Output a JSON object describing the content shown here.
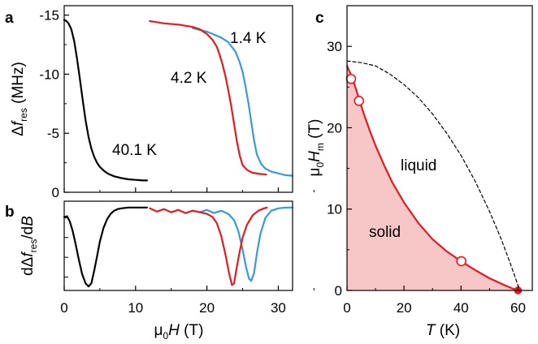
{
  "chart_data": [
    {
      "panel": "a",
      "type": "line",
      "ylabel": "Δf_res (MHz)",
      "xlim": [
        0,
        32
      ],
      "ylim": [
        0,
        -15.8
      ],
      "yticks": [
        "-15",
        "-10",
        "-5",
        "0"
      ],
      "annotations": [
        "1.4 K",
        "4.2 K",
        "40.1 K"
      ],
      "grid": false,
      "series": [
        {
          "name": "1.4 K",
          "color": "#3a9ad9",
          "x": [
            18.0,
            20.0,
            22.0,
            23.0,
            24.0,
            24.6,
            25.0,
            25.4,
            25.8,
            26.2,
            26.6,
            27.0,
            27.6,
            28.2,
            29.0,
            30.0,
            31.0,
            32.0
          ],
          "y": [
            -13.9,
            -13.6,
            -13.1,
            -12.7,
            -11.9,
            -11.0,
            -10.2,
            -9.0,
            -7.6,
            -6.0,
            -4.4,
            -3.2,
            -2.4,
            -2.0,
            -1.75,
            -1.6,
            -1.45,
            -1.4
          ]
        },
        {
          "name": "4.2 K",
          "color": "#e8191f",
          "x": [
            12.0,
            14.0,
            16.0,
            18.0,
            19.0,
            20.0,
            20.8,
            21.4,
            21.8,
            22.2,
            22.6,
            23.0,
            23.4,
            23.8,
            24.2,
            24.6,
            25.0,
            25.6,
            26.4,
            27.5,
            28.3
          ],
          "y": [
            -14.5,
            -14.3,
            -14.2,
            -14.0,
            -13.8,
            -13.4,
            -12.9,
            -12.3,
            -11.6,
            -10.8,
            -9.8,
            -8.6,
            -7.3,
            -5.8,
            -4.3,
            -3.1,
            -2.3,
            -1.9,
            -1.65,
            -1.55,
            -1.5
          ]
        },
        {
          "name": "40.1 K",
          "color": "#000000",
          "x": [
            0.0,
            0.3,
            0.6,
            1.0,
            1.4,
            1.8,
            2.2,
            2.6,
            3.0,
            3.4,
            3.8,
            4.2,
            4.6,
            5.0,
            5.6,
            6.2,
            7.0,
            8.0,
            9.0,
            10.0,
            11.0,
            11.6
          ],
          "y": [
            -14.6,
            -14.5,
            -14.3,
            -13.8,
            -12.8,
            -11.3,
            -9.6,
            -7.8,
            -6.1,
            -4.7,
            -3.7,
            -3.0,
            -2.5,
            -2.15,
            -1.8,
            -1.55,
            -1.35,
            -1.2,
            -1.1,
            -1.05,
            -1.0,
            -1.0
          ]
        }
      ]
    },
    {
      "panel": "b",
      "type": "line",
      "ylabel": "dΔf_res/dB",
      "xlabel": "μ0H (T)",
      "xlim": [
        0,
        32
      ],
      "ylim": [
        -1.07,
        0.06
      ],
      "xticks": [
        "0",
        "10",
        "20",
        "30"
      ],
      "grid": false,
      "series": [
        {
          "name": "1.4 K",
          "color": "#3a9ad9",
          "x": [
            18.0,
            19.0,
            20.0,
            21.0,
            22.0,
            23.0,
            23.8,
            24.4,
            25.0,
            25.5,
            25.9,
            26.2,
            26.6,
            27.0,
            27.5,
            28.2,
            29.0,
            30.0,
            31.0,
            32.0
          ],
          "y": [
            -0.06,
            -0.08,
            -0.05,
            -0.09,
            -0.06,
            -0.1,
            -0.18,
            -0.32,
            -0.55,
            -0.78,
            -0.92,
            -0.95,
            -0.85,
            -0.6,
            -0.35,
            -0.15,
            -0.06,
            -0.03,
            -0.02,
            -0.02
          ]
        },
        {
          "name": "4.2 K",
          "color": "#e8191f",
          "x": [
            12.0,
            13.0,
            14.0,
            15.0,
            16.0,
            17.0,
            18.0,
            19.0,
            20.0,
            20.8,
            21.4,
            22.0,
            22.6,
            23.1,
            23.5,
            23.8,
            24.1,
            24.5,
            25.0,
            25.6,
            26.4,
            27.2,
            28.0,
            28.4
          ],
          "y": [
            -0.03,
            -0.07,
            -0.04,
            -0.08,
            -0.05,
            -0.09,
            -0.06,
            -0.08,
            -0.1,
            -0.14,
            -0.22,
            -0.38,
            -0.62,
            -0.85,
            -1.0,
            -0.98,
            -0.82,
            -0.62,
            -0.4,
            -0.24,
            -0.12,
            -0.06,
            -0.03,
            -0.02
          ]
        },
        {
          "name": "40.1 K",
          "color": "#000000",
          "x": [
            0.0,
            0.4,
            0.8,
            1.2,
            1.6,
            2.0,
            2.5,
            3.0,
            3.4,
            3.8,
            4.2,
            4.6,
            5.0,
            5.5,
            6.0,
            6.5,
            7.0,
            7.5,
            8.0,
            9.0,
            10.0,
            11.0,
            11.6
          ],
          "y": [
            -0.14,
            -0.13,
            -0.2,
            -0.32,
            -0.48,
            -0.66,
            -0.86,
            -0.98,
            -1.02,
            -0.98,
            -0.82,
            -0.64,
            -0.45,
            -0.28,
            -0.17,
            -0.1,
            -0.06,
            -0.04,
            -0.03,
            -0.02,
            -0.02,
            -0.02,
            -0.02
          ]
        }
      ]
    },
    {
      "panel": "c",
      "type": "line",
      "xlabel": "T (K)",
      "ylabel": "μ0Hm (T)",
      "xlim": [
        0,
        65
      ],
      "ylim": [
        0,
        35
      ],
      "xticks": [
        "0",
        "20",
        "40",
        "60"
      ],
      "yticks": [
        "0",
        "10",
        "20",
        "30"
      ],
      "annotations": [
        "liquid",
        "solid"
      ],
      "grid": false,
      "fill_color": "#f7c6c6",
      "series": [
        {
          "name": "solid line",
          "color": "#e8191f",
          "x": [
            0.0,
            2.0,
            4.0,
            6.0,
            8.0,
            10.0,
            13.0,
            16.0,
            20.0,
            25.0,
            30.0,
            35.0,
            40.0,
            45.0,
            50.0,
            55.0,
            58.0,
            60.0
          ],
          "y": [
            27.6,
            26.0,
            23.8,
            21.6,
            19.6,
            17.8,
            15.4,
            13.2,
            10.8,
            8.3,
            6.3,
            4.8,
            3.6,
            2.5,
            1.5,
            0.7,
            0.25,
            0.0
          ]
        },
        {
          "name": "dashed line",
          "color": "#000000",
          "dash": true,
          "x": [
            0.0,
            5.0,
            10.0,
            15.0,
            20.0,
            25.0,
            30.0,
            35.0,
            40.0,
            45.0,
            50.0,
            54.0,
            57.0,
            59.0,
            60.0,
            61.0
          ],
          "y": [
            28.2,
            28.0,
            27.6,
            26.6,
            25.3,
            23.7,
            21.7,
            19.3,
            16.6,
            13.4,
            9.7,
            6.4,
            3.6,
            1.6,
            0.6,
            0.0
          ]
        },
        {
          "name": "data points",
          "color": "#e8191f",
          "markers": true,
          "x": [
            1.4,
            4.2,
            40.1,
            60.0
          ],
          "y": [
            26.0,
            23.3,
            3.6,
            0.0
          ]
        }
      ]
    }
  ]
}
